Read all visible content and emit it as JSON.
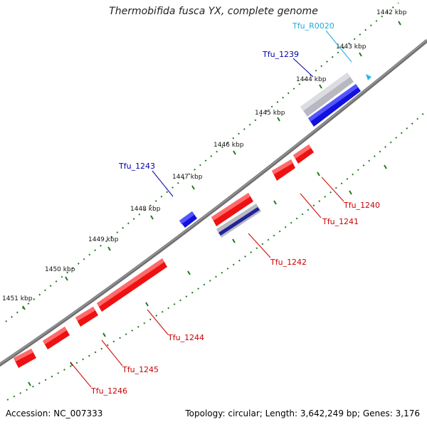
{
  "title": "Thermobifida fusca YX, complete genome",
  "footer": {
    "accession": "Accession: NC_007333",
    "genome_info": "Topology: circular; Length: 3,642,249 bp; Genes: 3,176"
  },
  "colors": {
    "backbone": "#707070",
    "tick": "#1f7a1f",
    "gene_cds": "#ee1111",
    "gene_highlight": "#1111dd",
    "gene_gray": "#b8b8c0",
    "gene_rna": "#22bbee",
    "label_red": "#cc0000",
    "label_blue": "#0000aa",
    "label_cyan": "#22aadd"
  },
  "ticks": {
    "outer": [
      {
        "label": "1442 kbp"
      },
      {
        "label": "1443 kbp"
      },
      {
        "label": "1444 kbp"
      },
      {
        "label": "1445 kbp"
      },
      {
        "label": "1446 kbp"
      },
      {
        "label": "1447 kbp"
      },
      {
        "label": "1448 kbp"
      },
      {
        "label": "1449 kbp"
      },
      {
        "label": "1450 kbp"
      },
      {
        "label": "1451 kbp"
      }
    ]
  },
  "genes": {
    "Tfu_R0020": {
      "label": "Tfu_R0020",
      "type": "rna",
      "strand": "forward"
    },
    "Tfu_1239": {
      "label": "Tfu_1239",
      "type": "highlight",
      "strand": "forward"
    },
    "Tfu_1240": {
      "label": "Tfu_1240",
      "type": "cds",
      "strand": "reverse"
    },
    "Tfu_1241": {
      "label": "Tfu_1241",
      "type": "cds",
      "strand": "reverse"
    },
    "Tfu_1242": {
      "label": "Tfu_1242",
      "type": "cds",
      "strand": "reverse"
    },
    "Tfu_1243": {
      "label": "Tfu_1243",
      "type": "highlight",
      "strand": "forward"
    },
    "Tfu_1244": {
      "label": "Tfu_1244",
      "type": "cds",
      "strand": "reverse"
    },
    "Tfu_1245": {
      "label": "Tfu_1245",
      "type": "cds",
      "strand": "reverse"
    },
    "Tfu_1246": {
      "label": "Tfu_1246",
      "type": "cds",
      "strand": "reverse"
    }
  }
}
